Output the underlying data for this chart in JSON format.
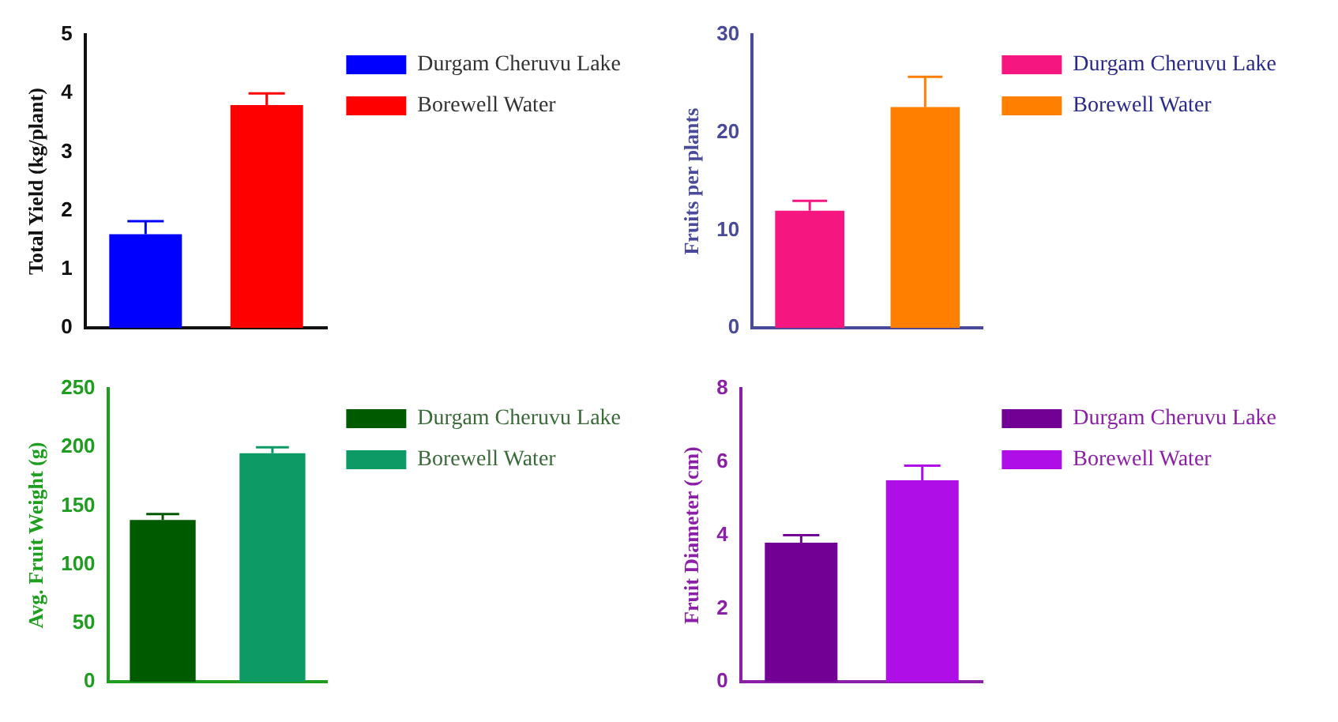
{
  "chart_data": [
    {
      "type": "bar",
      "ylabel": "Total Yield (kg/plant)",
      "categories": [
        null,
        null
      ],
      "ylim": [
        0,
        5
      ],
      "yticks": [
        0,
        1,
        2,
        3,
        4,
        5
      ],
      "legend": "top right",
      "series": [
        {
          "name": "Durgam Cheruvu Lake",
          "color": "#0000ff",
          "values": [
            1.6,
            null
          ],
          "errors": [
            0.22,
            null
          ]
        },
        {
          "name": "Borewell Water",
          "color": "#ff0000",
          "values": [
            null,
            3.8
          ],
          "errors": [
            null,
            0.2
          ]
        }
      ]
    },
    {
      "type": "bar",
      "ylabel": "Fruits per plants",
      "categories": [
        null,
        null
      ],
      "ylim": [
        0,
        30
      ],
      "yticks": [
        0,
        10,
        20,
        30
      ],
      "legend": "top right",
      "series": [
        {
          "name": "Durgam Cheruvu Lake",
          "color": "#f5177f",
          "values": [
            12,
            null
          ],
          "errors": [
            1,
            null
          ]
        },
        {
          "name": "Borewell Water",
          "color": "#ff8000",
          "values": [
            null,
            22.6
          ],
          "errors": [
            null,
            3.1
          ]
        }
      ]
    },
    {
      "type": "bar",
      "ylabel": "Avg. Fruit Weight (g)",
      "categories": [
        null,
        null
      ],
      "ylim": [
        0,
        250
      ],
      "yticks": [
        0,
        50,
        100,
        150,
        200,
        250
      ],
      "legend": "top right",
      "series": [
        {
          "name": "Durgam Cheruvu Lake",
          "color": "#005a00",
          "values": [
            138,
            null
          ],
          "errors": [
            5,
            null
          ]
        },
        {
          "name": "Borewell Water",
          "color": "#0e9a64",
          "values": [
            null,
            195
          ],
          "errors": [
            null,
            5
          ]
        }
      ]
    },
    {
      "type": "bar",
      "ylabel": "Fruit Diameter (cm)",
      "categories": [
        null,
        null
      ],
      "ylim": [
        0,
        8
      ],
      "yticks": [
        0,
        2,
        4,
        6,
        8
      ],
      "legend": "top right",
      "series": [
        {
          "name": "Durgam Cheruvu Lake",
          "color": "#720094",
          "values": [
            3.8,
            null
          ],
          "errors": [
            0.2,
            null
          ]
        },
        {
          "name": "Borewell Water",
          "color": "#b00ee6",
          "values": [
            null,
            5.5
          ],
          "errors": [
            null,
            0.4
          ]
        }
      ]
    }
  ]
}
